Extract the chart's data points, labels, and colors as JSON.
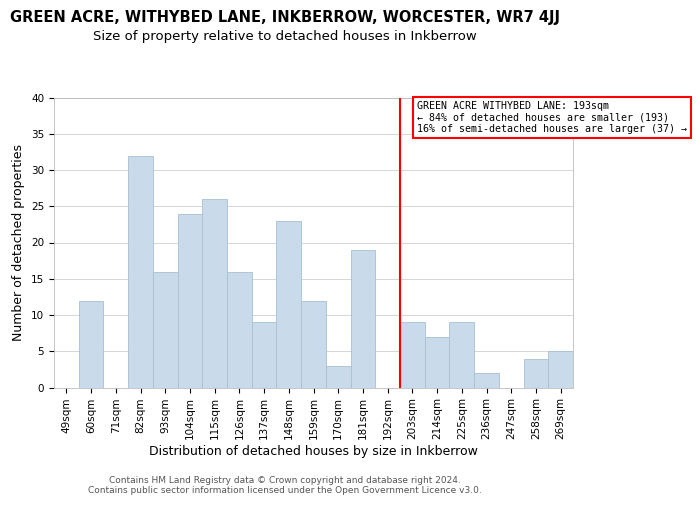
{
  "title": "GREEN ACRE, WITHYBED LANE, INKBERROW, WORCESTER, WR7 4JJ",
  "subtitle": "Size of property relative to detached houses in Inkberrow",
  "xlabel": "Distribution of detached houses by size in Inkberrow",
  "ylabel": "Number of detached properties",
  "footer_line1": "Contains HM Land Registry data © Crown copyright and database right 2024.",
  "footer_line2": "Contains public sector information licensed under the Open Government Licence v3.0.",
  "bin_labels": [
    "49sqm",
    "60sqm",
    "71sqm",
    "82sqm",
    "93sqm",
    "104sqm",
    "115sqm",
    "126sqm",
    "137sqm",
    "148sqm",
    "159sqm",
    "170sqm",
    "181sqm",
    "192sqm",
    "203sqm",
    "214sqm",
    "225sqm",
    "236sqm",
    "247sqm",
    "258sqm",
    "269sqm"
  ],
  "bar_values": [
    0,
    12,
    0,
    32,
    16,
    24,
    26,
    16,
    9,
    23,
    12,
    3,
    19,
    0,
    9,
    7,
    9,
    2,
    0,
    4,
    5
  ],
  "bar_color": "#c9daea",
  "bar_edge_color": "#a8c0d0",
  "marker_index": 13.5,
  "marker_label_line1": "GREEN ACRE WITHYBED LANE: 193sqm",
  "marker_label_line2": "← 84% of detached houses are smaller (193)",
  "marker_label_line3": "16% of semi-detached houses are larger (37) →",
  "marker_color": "red",
  "ylim": [
    0,
    40
  ],
  "yticks": [
    0,
    5,
    10,
    15,
    20,
    25,
    30,
    35,
    40
  ],
  "title_fontsize": 10.5,
  "subtitle_fontsize": 9.5,
  "axis_label_fontsize": 9,
  "tick_fontsize": 7.5,
  "footer_fontsize": 6.5
}
